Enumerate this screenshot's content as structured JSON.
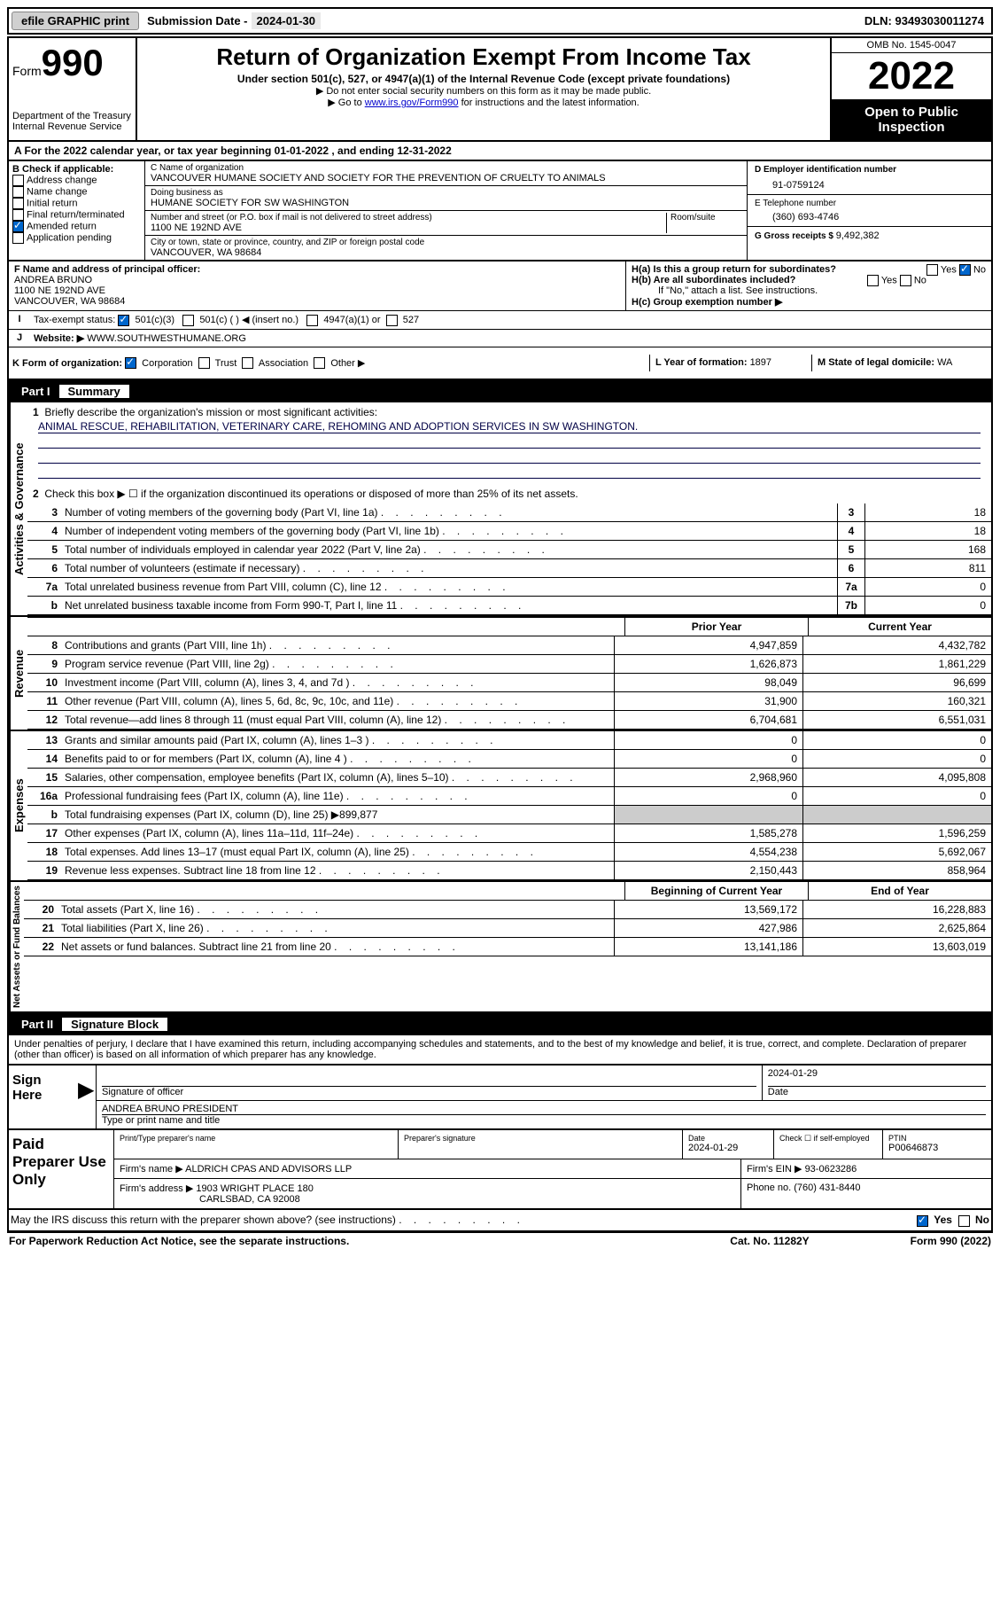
{
  "topbar": {
    "efile": "efile GRAPHIC print",
    "subdate_label": "Submission Date - ",
    "subdate": "2024-01-30",
    "dln_label": "DLN: ",
    "dln": "93493030011274"
  },
  "header": {
    "form_word": "Form",
    "form_num": "990",
    "dept": "Department of the Treasury",
    "irs": "Internal Revenue Service",
    "title": "Return of Organization Exempt From Income Tax",
    "sub1": "Under section 501(c), 527, or 4947(a)(1) of the Internal Revenue Code (except private foundations)",
    "sub2": "▶ Do not enter social security numbers on this form as it may be made public.",
    "sub3a": "▶ Go to ",
    "sub3_link": "www.irs.gov/Form990",
    "sub3b": " for instructions and the latest information.",
    "omb": "OMB No. 1545-0047",
    "year": "2022",
    "inspect": "Open to Public Inspection"
  },
  "rowA": {
    "text": "A For the 2022 calendar year, or tax year beginning 01-01-2022    , and ending 12-31-2022"
  },
  "B": {
    "label": "B Check if applicable:",
    "items": [
      "Address change",
      "Name change",
      "Initial return",
      "Final return/terminated",
      "Amended return",
      "Application pending"
    ],
    "checked_index": 4
  },
  "C": {
    "name_label": "C Name of organization",
    "name": "VANCOUVER HUMANE SOCIETY AND SOCIETY FOR THE PREVENTION OF CRUELTY TO ANIMALS",
    "dba_label": "Doing business as",
    "dba": "HUMANE SOCIETY FOR SW WASHINGTON",
    "addr_label": "Number and street (or P.O. box if mail is not delivered to street address)",
    "room_label": "Room/suite",
    "addr": "1100 NE 192ND AVE",
    "city_label": "City or town, state or province, country, and ZIP or foreign postal code",
    "city": "VANCOUVER, WA  98684"
  },
  "D": {
    "label": "D Employer identification number",
    "value": "91-0759124"
  },
  "E": {
    "label": "E Telephone number",
    "value": "(360) 693-4746"
  },
  "G": {
    "label": "G Gross receipts $ ",
    "value": "9,492,382"
  },
  "F": {
    "label": "F Name and address of principal officer:",
    "name": "ANDREA BRUNO",
    "addr1": "1100 NE 192ND AVE",
    "addr2": "VANCOUVER, WA  98684"
  },
  "H": {
    "a": "H(a)  Is this a group return for subordinates?",
    "a_yes": "Yes",
    "a_no": "No",
    "b": "H(b)  Are all subordinates included?",
    "b_yes": "Yes",
    "b_no": "No",
    "b_note": "If \"No,\" attach a list. See instructions.",
    "c": "H(c)  Group exemption number ▶"
  },
  "I": {
    "label": "Tax-exempt status:",
    "opt1": "501(c)(3)",
    "opt2": "501(c) (  ) ◀ (insert no.)",
    "opt3": "4947(a)(1) or",
    "opt4": "527"
  },
  "J": {
    "label": "Website: ▶",
    "value": "WWW.SOUTHWESTHUMANE.ORG"
  },
  "K": {
    "label": "K Form of organization:",
    "opts": [
      "Corporation",
      "Trust",
      "Association",
      "Other ▶"
    ]
  },
  "L": {
    "label": "L Year of formation: ",
    "value": "1897"
  },
  "M": {
    "label": "M State of legal domicile: ",
    "value": "WA"
  },
  "part1": {
    "part": "Part I",
    "title": "Summary",
    "q1": "Briefly describe the organization's mission or most significant activities:",
    "mission": "ANIMAL RESCUE, REHABILITATION, VETERINARY CARE, REHOMING AND ADOPTION SERVICES IN SW WASHINGTON.",
    "q2": "Check this box ▶ ☐  if the organization discontinued its operations or disposed of more than 25% of its net assets.",
    "lines_gov": [
      {
        "n": "3",
        "d": "Number of voting members of the governing body (Part VI, line 1a)",
        "box": "3",
        "v": "18"
      },
      {
        "n": "4",
        "d": "Number of independent voting members of the governing body (Part VI, line 1b)",
        "box": "4",
        "v": "18"
      },
      {
        "n": "5",
        "d": "Total number of individuals employed in calendar year 2022 (Part V, line 2a)",
        "box": "5",
        "v": "168"
      },
      {
        "n": "6",
        "d": "Total number of volunteers (estimate if necessary)",
        "box": "6",
        "v": "811"
      },
      {
        "n": "7a",
        "d": "Total unrelated business revenue from Part VIII, column (C), line 12",
        "box": "7a",
        "v": "0"
      },
      {
        "n": "b",
        "d": "Net unrelated business taxable income from Form 990-T, Part I, line 11",
        "box": "7b",
        "v": "0"
      }
    ],
    "prior_label": "Prior Year",
    "current_label": "Current Year",
    "revenue": [
      {
        "n": "8",
        "d": "Contributions and grants (Part VIII, line 1h)",
        "p": "4,947,859",
        "c": "4,432,782"
      },
      {
        "n": "9",
        "d": "Program service revenue (Part VIII, line 2g)",
        "p": "1,626,873",
        "c": "1,861,229"
      },
      {
        "n": "10",
        "d": "Investment income (Part VIII, column (A), lines 3, 4, and 7d )",
        "p": "98,049",
        "c": "96,699"
      },
      {
        "n": "11",
        "d": "Other revenue (Part VIII, column (A), lines 5, 6d, 8c, 9c, 10c, and 11e)",
        "p": "31,900",
        "c": "160,321"
      },
      {
        "n": "12",
        "d": "Total revenue—add lines 8 through 11 (must equal Part VIII, column (A), line 12)",
        "p": "6,704,681",
        "c": "6,551,031"
      }
    ],
    "expenses": [
      {
        "n": "13",
        "d": "Grants and similar amounts paid (Part IX, column (A), lines 1–3 )",
        "p": "0",
        "c": "0"
      },
      {
        "n": "14",
        "d": "Benefits paid to or for members (Part IX, column (A), line 4 )",
        "p": "0",
        "c": "0"
      },
      {
        "n": "15",
        "d": "Salaries, other compensation, employee benefits (Part IX, column (A), lines 5–10)",
        "p": "2,968,960",
        "c": "4,095,808"
      },
      {
        "n": "16a",
        "d": "Professional fundraising fees (Part IX, column (A), line 11e)",
        "p": "0",
        "c": "0"
      }
    ],
    "line_b": {
      "n": "b",
      "d": "Total fundraising expenses (Part IX, column (D), line 25) ▶",
      "v": "899,877"
    },
    "expenses2": [
      {
        "n": "17",
        "d": "Other expenses (Part IX, column (A), lines 11a–11d, 11f–24e)",
        "p": "1,585,278",
        "c": "1,596,259"
      },
      {
        "n": "18",
        "d": "Total expenses. Add lines 13–17 (must equal Part IX, column (A), line 25)",
        "p": "4,554,238",
        "c": "5,692,067"
      },
      {
        "n": "19",
        "d": "Revenue less expenses. Subtract line 18 from line 12",
        "p": "2,150,443",
        "c": "858,964"
      }
    ],
    "begin_label": "Beginning of Current Year",
    "end_label": "End of Year",
    "netassets": [
      {
        "n": "20",
        "d": "Total assets (Part X, line 16)",
        "p": "13,569,172",
        "c": "16,228,883"
      },
      {
        "n": "21",
        "d": "Total liabilities (Part X, line 26)",
        "p": "427,986",
        "c": "2,625,864"
      },
      {
        "n": "22",
        "d": "Net assets or fund balances. Subtract line 21 from line 20",
        "p": "13,141,186",
        "c": "13,603,019"
      }
    ],
    "vlabels": {
      "gov": "Activities & Governance",
      "rev": "Revenue",
      "exp": "Expenses",
      "net": "Net Assets or Fund Balances"
    }
  },
  "part2": {
    "part": "Part II",
    "title": "Signature Block",
    "intro": "Under penalties of perjury, I declare that I have examined this return, including accompanying schedules and statements, and to the best of my knowledge and belief, it is true, correct, and complete. Declaration of preparer (other than officer) is based on all information of which preparer has any knowledge.",
    "sign_here": "Sign Here",
    "sig_officer": "Signature of officer",
    "date_label": "Date",
    "sig_date": "2024-01-29",
    "officer_name": "ANDREA BRUNO  PRESIDENT",
    "type_name": "Type or print name and title",
    "paid": "Paid Preparer Use Only",
    "prep_name_label": "Print/Type preparer's name",
    "prep_sig_label": "Preparer's signature",
    "prep_date_label": "Date",
    "prep_date": "2024-01-29",
    "check_if": "Check ☐ if self-employed",
    "ptin_label": "PTIN",
    "ptin": "P00646873",
    "firm_name_label": "Firm's name    ▶ ",
    "firm_name": "ALDRICH CPAS AND ADVISORS LLP",
    "firm_ein_label": "Firm's EIN ▶ ",
    "firm_ein": "93-0623286",
    "firm_addr_label": "Firm's address ▶ ",
    "firm_addr": "1903 WRIGHT PLACE 180",
    "firm_city": "CARLSBAD, CA  92008",
    "phone_label": "Phone no. ",
    "phone": "(760) 431-8440",
    "discuss": "May the IRS discuss this return with the preparer shown above? (see instructions)",
    "discuss_yes": "Yes",
    "discuss_no": "No"
  },
  "footer": {
    "paperwork": "For Paperwork Reduction Act Notice, see the separate instructions.",
    "cat": "Cat. No. 11282Y",
    "form": "Form 990 (2022)"
  }
}
